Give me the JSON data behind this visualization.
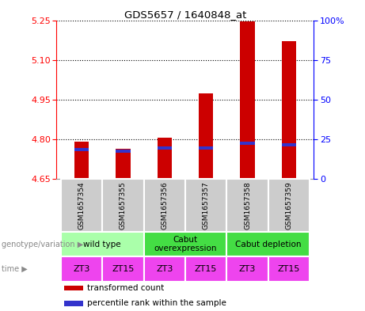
{
  "title": "GDS5657 / 1640848_at",
  "samples": [
    "GSM1657354",
    "GSM1657355",
    "GSM1657356",
    "GSM1657357",
    "GSM1657358",
    "GSM1657359"
  ],
  "transformed_counts": [
    4.79,
    4.765,
    4.805,
    4.972,
    5.247,
    5.172
  ],
  "percentile_values": [
    4.755,
    4.748,
    4.76,
    4.762,
    4.778,
    4.772
  ],
  "ylim_left": [
    4.65,
    5.25
  ],
  "yticks_left": [
    4.65,
    4.8,
    4.95,
    5.1,
    5.25
  ],
  "ylim_right": [
    0,
    100
  ],
  "yticks_right": [
    0,
    25,
    50,
    75,
    100
  ],
  "yticklabels_right": [
    "0",
    "25",
    "50",
    "75",
    "100%"
  ],
  "bar_bottom": 4.65,
  "bar_width": 0.35,
  "bar_color_red": "#CC0000",
  "bar_color_blue": "#3333CC",
  "blue_bar_height": 0.012,
  "genotype_groups": [
    {
      "label": "wild type",
      "start": 0,
      "end": 2,
      "color": "#AAFFAA"
    },
    {
      "label": "Cabut\noverexpression",
      "start": 2,
      "end": 4,
      "color": "#44DD44"
    },
    {
      "label": "Cabut depletion",
      "start": 4,
      "end": 6,
      "color": "#44DD44"
    }
  ],
  "time_labels": [
    "ZT3",
    "ZT15",
    "ZT3",
    "ZT15",
    "ZT3",
    "ZT15"
  ],
  "time_color": "#EE44EE",
  "sample_bg_color": "#CCCCCC",
  "genotype_label": "genotype/variation",
  "time_label": "time",
  "legend_items": [
    {
      "color": "#CC0000",
      "label": "transformed count"
    },
    {
      "color": "#3333CC",
      "label": "percentile rank within the sample"
    }
  ],
  "fig_width": 4.61,
  "fig_height": 3.93,
  "dpi": 100
}
